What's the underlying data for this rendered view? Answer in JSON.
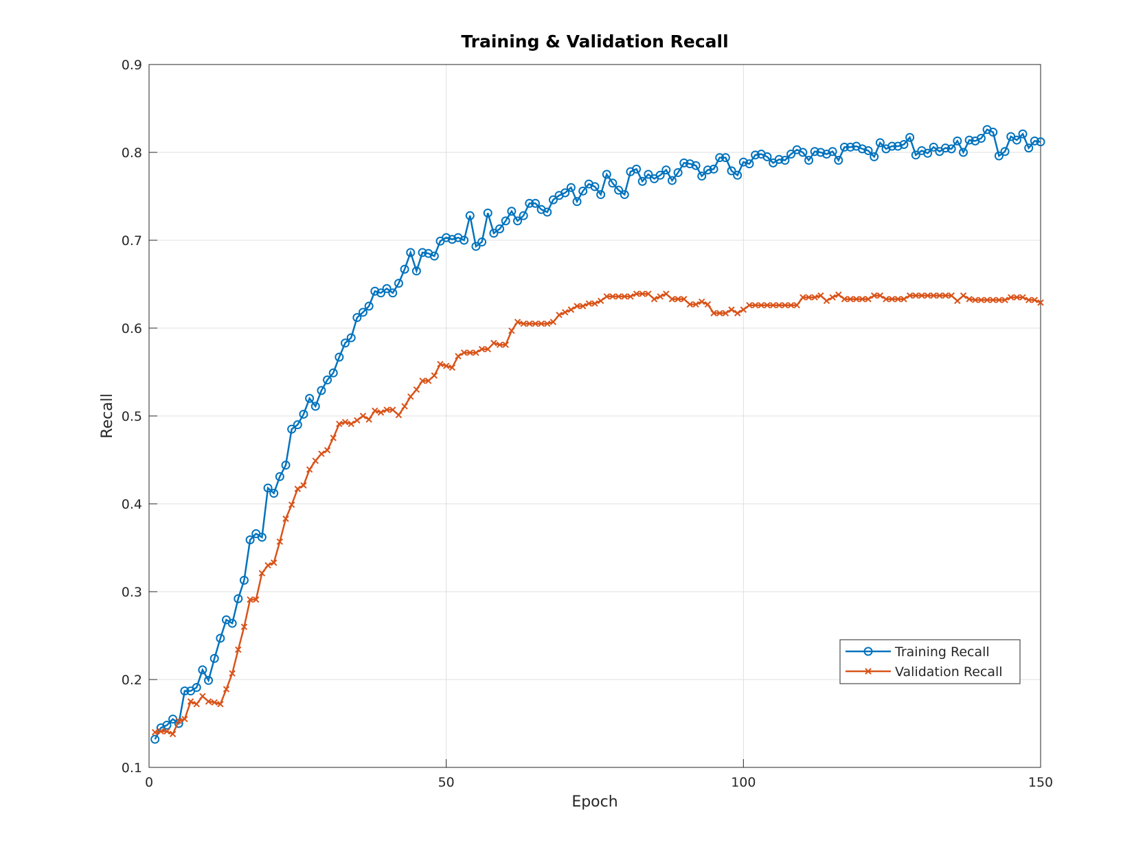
{
  "chart_data": {
    "type": "line",
    "title": "Training & Validation Recall",
    "x_label": "Epoch",
    "y_label": "Recall",
    "x": [
      1,
      2,
      3,
      4,
      5,
      6,
      7,
      8,
      9,
      10,
      11,
      12,
      13,
      14,
      15,
      16,
      17,
      18,
      19,
      20,
      21,
      22,
      23,
      24,
      25,
      26,
      27,
      28,
      29,
      30,
      31,
      32,
      33,
      34,
      35,
      36,
      37,
      38,
      39,
      40,
      41,
      42,
      43,
      44,
      45,
      46,
      47,
      48,
      49,
      50,
      51,
      52,
      53,
      54,
      55,
      56,
      57,
      58,
      59,
      60,
      61,
      62,
      63,
      64,
      65,
      66,
      67,
      68,
      69,
      70,
      71,
      72,
      73,
      74,
      75,
      76,
      77,
      78,
      79,
      80,
      81,
      82,
      83,
      84,
      85,
      86,
      87,
      88,
      89,
      90,
      91,
      92,
      93,
      94,
      95,
      96,
      97,
      98,
      99,
      100,
      101,
      102,
      103,
      104,
      105,
      106,
      107,
      108,
      109,
      110,
      111,
      112,
      113,
      114,
      115,
      116,
      117,
      118,
      119,
      120,
      121,
      122,
      123,
      124,
      125,
      126,
      127,
      128,
      129,
      130,
      131,
      132,
      133,
      134,
      135,
      136,
      137,
      138,
      139,
      140,
      141,
      142,
      143,
      144,
      145,
      146,
      147,
      148,
      149,
      150
    ],
    "series": [
      {
        "name": "Training Recall",
        "color": "#0072bd",
        "marker": "circle",
        "values": [
          0.132,
          0.145,
          0.148,
          0.155,
          0.15,
          0.187,
          0.187,
          0.191,
          0.211,
          0.199,
          0.224,
          0.247,
          0.268,
          0.264,
          0.292,
          0.313,
          0.359,
          0.366,
          0.362,
          0.418,
          0.412,
          0.431,
          0.444,
          0.485,
          0.49,
          0.502,
          0.52,
          0.511,
          0.529,
          0.541,
          0.549,
          0.567,
          0.583,
          0.589,
          0.612,
          0.618,
          0.625,
          0.642,
          0.64,
          0.645,
          0.64,
          0.651,
          0.667,
          0.686,
          0.665,
          0.686,
          0.685,
          0.682,
          0.699,
          0.703,
          0.701,
          0.703,
          0.7,
          0.728,
          0.693,
          0.698,
          0.731,
          0.708,
          0.713,
          0.722,
          0.733,
          0.722,
          0.728,
          0.742,
          0.742,
          0.735,
          0.732,
          0.746,
          0.751,
          0.754,
          0.76,
          0.744,
          0.756,
          0.764,
          0.761,
          0.752,
          0.775,
          0.765,
          0.757,
          0.752,
          0.778,
          0.781,
          0.767,
          0.775,
          0.77,
          0.774,
          0.78,
          0.768,
          0.777,
          0.788,
          0.787,
          0.785,
          0.773,
          0.78,
          0.781,
          0.794,
          0.794,
          0.779,
          0.774,
          0.789,
          0.787,
          0.797,
          0.798,
          0.795,
          0.788,
          0.792,
          0.791,
          0.798,
          0.803,
          0.8,
          0.791,
          0.801,
          0.8,
          0.798,
          0.801,
          0.791,
          0.806,
          0.806,
          0.807,
          0.804,
          0.802,
          0.795,
          0.811,
          0.804,
          0.807,
          0.807,
          0.809,
          0.817,
          0.797,
          0.802,
          0.799,
          0.806,
          0.801,
          0.805,
          0.804,
          0.813,
          0.8,
          0.814,
          0.813,
          0.816,
          0.826,
          0.823,
          0.796,
          0.801,
          0.818,
          0.814,
          0.821,
          0.805,
          0.813,
          0.812
        ]
      },
      {
        "name": "Validation Recall",
        "color": "#d95319",
        "marker": "x",
        "values": [
          0.14,
          0.141,
          0.141,
          0.138,
          0.153,
          0.155,
          0.175,
          0.172,
          0.181,
          0.175,
          0.174,
          0.172,
          0.189,
          0.207,
          0.234,
          0.26,
          0.291,
          0.291,
          0.321,
          0.33,
          0.333,
          0.357,
          0.383,
          0.399,
          0.417,
          0.421,
          0.439,
          0.449,
          0.457,
          0.461,
          0.475,
          0.491,
          0.493,
          0.491,
          0.495,
          0.5,
          0.496,
          0.506,
          0.504,
          0.507,
          0.507,
          0.501,
          0.511,
          0.522,
          0.53,
          0.54,
          0.54,
          0.546,
          0.559,
          0.557,
          0.555,
          0.568,
          0.572,
          0.572,
          0.572,
          0.576,
          0.576,
          0.583,
          0.581,
          0.581,
          0.597,
          0.607,
          0.605,
          0.605,
          0.605,
          0.605,
          0.605,
          0.607,
          0.615,
          0.618,
          0.621,
          0.625,
          0.625,
          0.628,
          0.628,
          0.631,
          0.636,
          0.636,
          0.636,
          0.636,
          0.636,
          0.639,
          0.639,
          0.639,
          0.633,
          0.636,
          0.639,
          0.633,
          0.633,
          0.633,
          0.627,
          0.627,
          0.63,
          0.627,
          0.617,
          0.617,
          0.617,
          0.621,
          0.617,
          0.621,
          0.626,
          0.626,
          0.626,
          0.626,
          0.626,
          0.626,
          0.626,
          0.626,
          0.626,
          0.635,
          0.635,
          0.635,
          0.637,
          0.631,
          0.635,
          0.638,
          0.633,
          0.633,
          0.633,
          0.633,
          0.633,
          0.637,
          0.637,
          0.633,
          0.633,
          0.633,
          0.633,
          0.637,
          0.637,
          0.637,
          0.637,
          0.637,
          0.637,
          0.637,
          0.637,
          0.631,
          0.637,
          0.633,
          0.632,
          0.632,
          0.632,
          0.632,
          0.632,
          0.632,
          0.635,
          0.635,
          0.635,
          0.632,
          0.632,
          0.629
        ]
      }
    ],
    "xlim": [
      0,
      150
    ],
    "xticks": [
      0,
      50,
      100,
      150
    ],
    "ylim": [
      0.1,
      0.9
    ],
    "yticks": [
      0.1,
      0.2,
      0.3,
      0.4,
      0.5,
      0.6,
      0.7,
      0.8,
      0.9
    ],
    "grid": true,
    "legend": "lower right"
  }
}
